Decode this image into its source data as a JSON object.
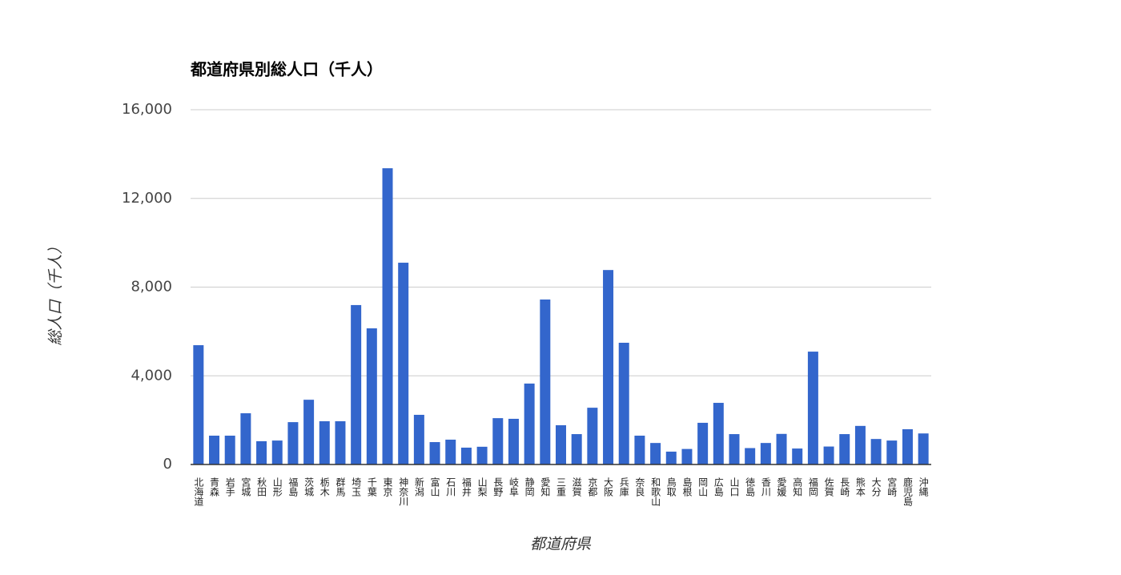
{
  "chart_data": {
    "type": "bar",
    "title": "都道府県別総人口（千人）",
    "x_label": "都道府県",
    "y_label": "総人口（千人）",
    "categories": [
      "北海道",
      "青森",
      "岩手",
      "宮城",
      "秋田",
      "山形",
      "福島",
      "茨城",
      "栃木",
      "群馬",
      "埼玉",
      "千葉",
      "東京",
      "神奈川",
      "新潟",
      "富山",
      "石川",
      "福井",
      "山梨",
      "長野",
      "岐阜",
      "静岡",
      "愛知",
      "三重",
      "滋賀",
      "京都",
      "大阪",
      "兵庫",
      "奈良",
      "和歌山",
      "鳥取",
      "島根",
      "岡山",
      "広島",
      "山口",
      "徳島",
      "香川",
      "愛媛",
      "高知",
      "福岡",
      "佐賀",
      "長崎",
      "熊本",
      "大分",
      "宮崎",
      "鹿児島",
      "沖縄"
    ],
    "values": [
      5380,
      1300,
      1300,
      2310,
      1050,
      1080,
      1910,
      2920,
      1950,
      1950,
      7190,
      6140,
      13360,
      9100,
      2240,
      1010,
      1120,
      760,
      800,
      2090,
      2060,
      3650,
      7440,
      1770,
      1370,
      2560,
      8770,
      5490,
      1300,
      970,
      580,
      700,
      1880,
      2780,
      1370,
      740,
      970,
      1380,
      720,
      5090,
      810,
      1370,
      1740,
      1150,
      1080,
      1590,
      1400
    ],
    "color": "#3366cc",
    "ylim": [
      0,
      16000
    ],
    "yticks": [
      0,
      {
        "value": 4000,
        "label": "4,000"
      },
      {
        "value": 8000,
        "label": "8,000"
      },
      {
        "value": 12000,
        "label": "12,000"
      },
      {
        "value": 16000,
        "label": "16,000"
      }
    ],
    "grid": true
  }
}
